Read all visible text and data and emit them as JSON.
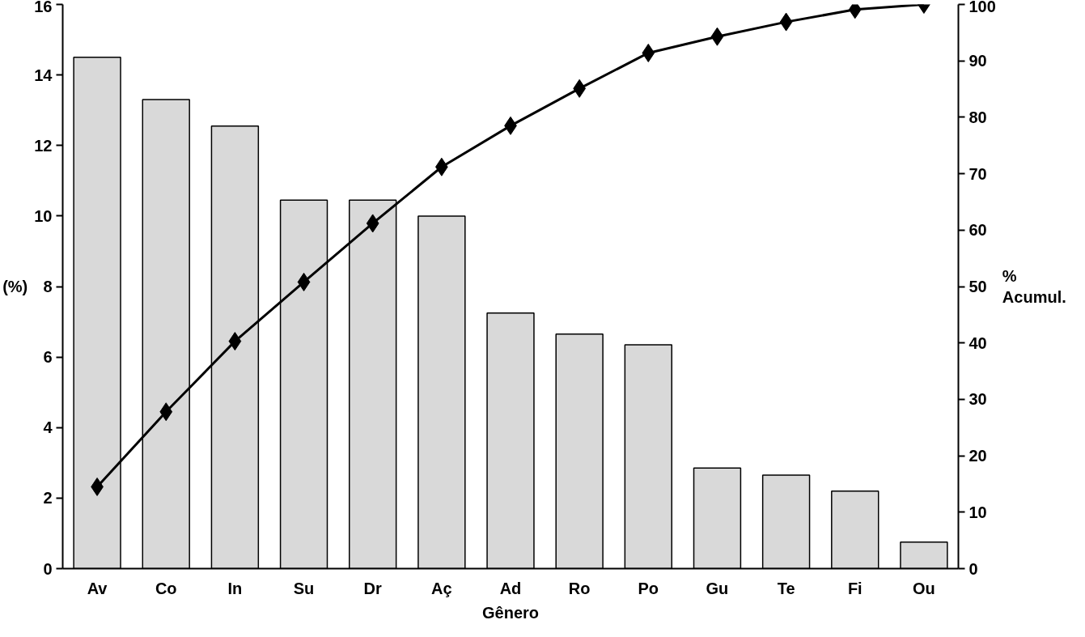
{
  "chart_data": {
    "type": "bar",
    "xlabel": "Gênero",
    "ylabel": "(%)",
    "y2label": "%\nAcumul.",
    "categories": [
      "Av",
      "Co",
      "In",
      "Su",
      "Dr",
      "Aç",
      "Ad",
      "Ro",
      "Po",
      "Gu",
      "Te",
      "Fi",
      "Ou"
    ],
    "series": [
      {
        "color": "#d9d9d9",
        "values": [
          14.5,
          13.3,
          12.55,
          10.45,
          10.45,
          10.0,
          7.25,
          6.65,
          6.35,
          2.85,
          2.65,
          2.2,
          0.75
        ]
      },
      {
        "type": "line",
        "axis": "y2",
        "color": "#000000",
        "marker": "diamond",
        "values": [
          14.5,
          27.8,
          40.3,
          50.8,
          61.2,
          71.2,
          78.5,
          85.1,
          91.4,
          94.3,
          96.9,
          99.1,
          100
        ]
      }
    ],
    "ylim": [
      0,
      16
    ],
    "yticks": [
      0,
      2,
      4,
      6,
      8,
      10,
      12,
      14,
      16
    ],
    "y2lim": [
      0,
      100
    ],
    "y2ticks": [
      0,
      10,
      20,
      30,
      40,
      50,
      60,
      70,
      80,
      90,
      100
    ],
    "grid": false
  }
}
